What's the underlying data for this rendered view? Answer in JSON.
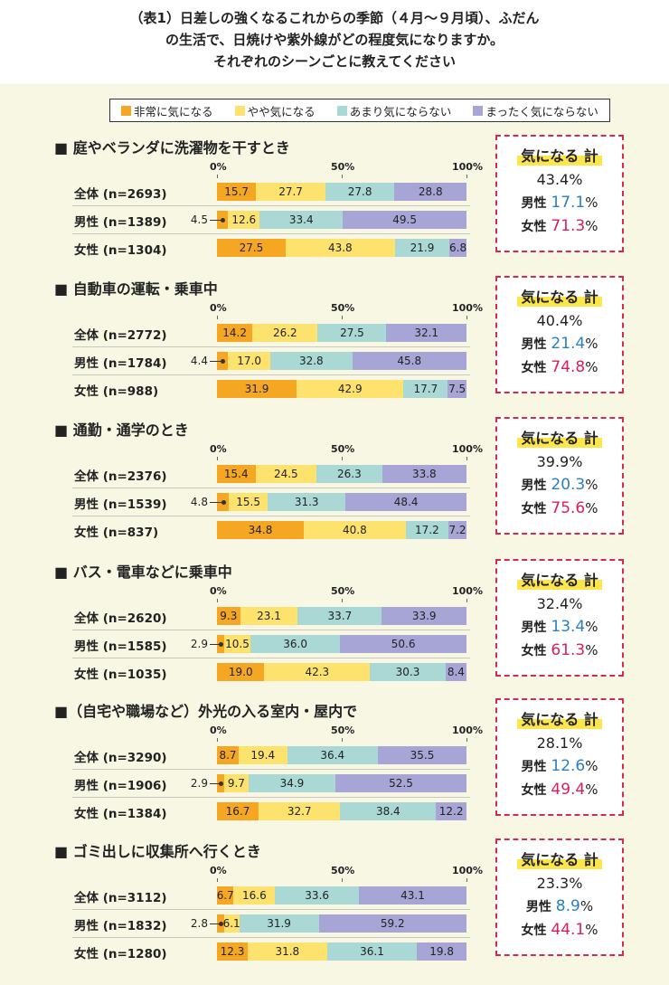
{
  "title": [
    "（表1）日差しの強くなるこれからの季節（４月～９月頃）、ふだん",
    "の生活で、日焼けや紫外線がどの程度気になりますか。",
    "それぞれのシーンごとに教えてください"
  ],
  "colors": [
    "#f5a623",
    "#fde36e",
    "#a9d8d5",
    "#a7a5d6"
  ],
  "ticks": [
    "0%",
    "50%",
    "100%"
  ],
  "legend": [
    "非常に気になる",
    "やや気になる",
    "あまり気にならない",
    "まったく気にならない"
  ],
  "box_labels": {
    "header": "気になる 計",
    "male": "男性",
    "female": "女性",
    "pct": "%"
  },
  "chart_data": [
    {
      "type": "bar",
      "title": "■ 庭やベランダに洗濯物を干すとき",
      "rows": [
        {
          "label": "全体 (n=2693)",
          "values": [
            15.7,
            27.7,
            27.8,
            28.8
          ],
          "texts": [
            "15.7",
            "27.7",
            "27.8",
            "28.8"
          ]
        },
        {
          "label": "男性 (n=1389)",
          "values": [
            4.5,
            12.6,
            33.4,
            49.5
          ],
          "texts": [
            "4.5",
            "12.6",
            "33.4",
            "49.5"
          ]
        },
        {
          "label": "女性 (n=1304)",
          "values": [
            27.5,
            43.8,
            21.9,
            6.8
          ],
          "texts": [
            "27.5",
            "43.8",
            "21.9",
            "6.8"
          ]
        }
      ],
      "summary": {
        "total": "43.4%",
        "male": "17.1",
        "female": "71.3"
      }
    },
    {
      "type": "bar",
      "title": "■ 自動車の運転・乗車中",
      "rows": [
        {
          "label": "全体 (n=2772)",
          "values": [
            14.2,
            26.2,
            27.5,
            32.1
          ],
          "texts": [
            "14.2",
            "26.2",
            "27.5",
            "32.1"
          ]
        },
        {
          "label": "男性 (n=1784)",
          "values": [
            4.4,
            17.0,
            32.8,
            45.8
          ],
          "texts": [
            "4.4",
            "17.0",
            "32.8",
            "45.8"
          ]
        },
        {
          "label": "女性 (n=988)",
          "values": [
            31.9,
            42.9,
            17.7,
            7.5
          ],
          "texts": [
            "31.9",
            "42.9",
            "17.7",
            "7.5"
          ]
        }
      ],
      "summary": {
        "total": "40.4%",
        "male": "21.4",
        "female": "74.8"
      }
    },
    {
      "type": "bar",
      "title": "■ 通勤・通学のとき",
      "rows": [
        {
          "label": "全体 (n=2376)",
          "values": [
            15.4,
            24.5,
            26.3,
            33.8
          ],
          "texts": [
            "15.4",
            "24.5",
            "26.3",
            "33.8"
          ]
        },
        {
          "label": "男性 (n=1539)",
          "values": [
            4.8,
            15.5,
            31.3,
            48.4
          ],
          "texts": [
            "4.8",
            "15.5",
            "31.3",
            "48.4"
          ]
        },
        {
          "label": "女性 (n=837)",
          "values": [
            34.8,
            40.8,
            17.2,
            7.2
          ],
          "texts": [
            "34.8",
            "40.8",
            "17.2",
            "7.2"
          ]
        }
      ],
      "summary": {
        "total": "39.9%",
        "male": "20.3",
        "female": "75.6"
      }
    },
    {
      "type": "bar",
      "title": "■ バス・電車などに乗車中",
      "rows": [
        {
          "label": "全体 (n=2620)",
          "values": [
            9.3,
            23.1,
            33.7,
            33.9
          ],
          "texts": [
            "9.3",
            "23.1",
            "33.7",
            "33.9"
          ]
        },
        {
          "label": "男性 (n=1585)",
          "values": [
            2.9,
            10.5,
            36.0,
            50.6
          ],
          "texts": [
            "2.9",
            "10.5",
            "36.0",
            "50.6"
          ]
        },
        {
          "label": "女性 (n=1035)",
          "values": [
            19.0,
            42.3,
            30.3,
            8.4
          ],
          "texts": [
            "19.0",
            "42.3",
            "30.3",
            "8.4"
          ]
        }
      ],
      "summary": {
        "total": "32.4%",
        "male": "13.4",
        "female": "61.3"
      }
    },
    {
      "type": "bar",
      "title": "■（自宅や職場など）外光の入る室内・屋内で",
      "rows": [
        {
          "label": "全体 (n=3290)",
          "values": [
            8.7,
            19.4,
            36.4,
            35.5
          ],
          "texts": [
            "8.7",
            "19.4",
            "36.4",
            "35.5"
          ]
        },
        {
          "label": "男性 (n=1906)",
          "values": [
            2.9,
            9.7,
            34.9,
            52.5
          ],
          "texts": [
            "2.9",
            "9.7",
            "34.9",
            "52.5"
          ]
        },
        {
          "label": "女性 (n=1384)",
          "values": [
            16.7,
            32.7,
            38.4,
            12.2
          ],
          "texts": [
            "16.7",
            "32.7",
            "38.4",
            "12.2"
          ]
        }
      ],
      "summary": {
        "total": "28.1%",
        "male": "12.6",
        "female": "49.4"
      }
    },
    {
      "type": "bar",
      "title": "■ ゴミ出しに収集所へ行くとき",
      "rows": [
        {
          "label": "全体 (n=3112)",
          "values": [
            6.7,
            16.6,
            33.6,
            43.1
          ],
          "texts": [
            "6.7",
            "16.6",
            "33.6",
            "43.1"
          ]
        },
        {
          "label": "男性 (n=1832)",
          "values": [
            2.8,
            6.1,
            31.9,
            59.2
          ],
          "texts": [
            "2.8",
            "6.1",
            "31.9",
            "59.2"
          ]
        },
        {
          "label": "女性 (n=1280)",
          "values": [
            12.3,
            31.8,
            36.1,
            19.8
          ],
          "texts": [
            "12.3",
            "31.8",
            "36.1",
            "19.8"
          ]
        }
      ],
      "summary": {
        "total": "23.3%",
        "male": "8.9",
        "female": "44.1"
      }
    }
  ]
}
